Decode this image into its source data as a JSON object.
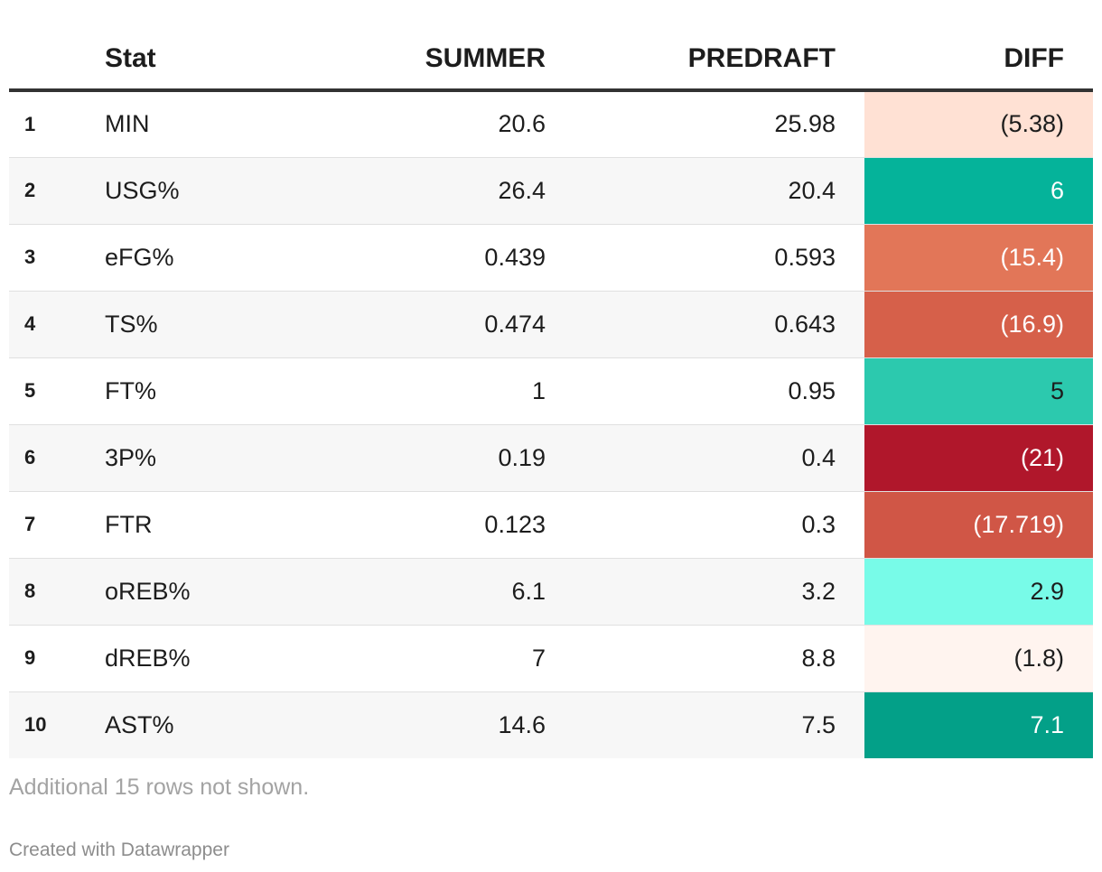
{
  "chart_data": {
    "type": "table",
    "columns": [
      "",
      "Stat",
      "SUMMER",
      "PREDRAFT",
      "DIFF"
    ],
    "rows": [
      {
        "rank": "1",
        "stat": "MIN",
        "summer": "20.6",
        "predraft": "25.98",
        "diff": "(5.38)",
        "diff_bg": "#ffe1d4",
        "diff_fg": "#1d1d1d"
      },
      {
        "rank": "2",
        "stat": "USG%",
        "summer": "26.4",
        "predraft": "20.4",
        "diff": "6",
        "diff_bg": "#05b39a",
        "diff_fg": "#ffffff"
      },
      {
        "rank": "3",
        "stat": "eFG%",
        "summer": "0.439",
        "predraft": "0.593",
        "diff": "(15.4)",
        "diff_bg": "#e27658",
        "diff_fg": "#ffffff"
      },
      {
        "rank": "4",
        "stat": "TS%",
        "summer": "0.474",
        "predraft": "0.643",
        "diff": "(16.9)",
        "diff_bg": "#d6604a",
        "diff_fg": "#ffffff"
      },
      {
        "rank": "5",
        "stat": "FT%",
        "summer": "1",
        "predraft": "0.95",
        "diff": "5",
        "diff_bg": "#2cc9ae",
        "diff_fg": "#1d1d1d"
      },
      {
        "rank": "6",
        "stat": "3P%",
        "summer": "0.19",
        "predraft": "0.4",
        "diff": "(21)",
        "diff_bg": "#b0172b",
        "diff_fg": "#ffffff"
      },
      {
        "rank": "7",
        "stat": "FTR",
        "summer": "0.123",
        "predraft": "0.3",
        "diff": "(17.719)",
        "diff_bg": "#d05646",
        "diff_fg": "#ffffff"
      },
      {
        "rank": "8",
        "stat": "oREB%",
        "summer": "6.1",
        "predraft": "3.2",
        "diff": "2.9",
        "diff_bg": "#78fbe8",
        "diff_fg": "#1d1d1d"
      },
      {
        "rank": "9",
        "stat": "dREB%",
        "summer": "7",
        "predraft": "8.8",
        "diff": "(1.8)",
        "diff_bg": "#fff4ef",
        "diff_fg": "#1d1d1d"
      },
      {
        "rank": "10",
        "stat": "AST%",
        "summer": "14.6",
        "predraft": "7.5",
        "diff": "7.1",
        "diff_bg": "#03a088",
        "diff_fg": "#ffffff"
      }
    ],
    "notes": "Additional 15 rows not shown.",
    "credit": "Created with Datawrapper"
  }
}
